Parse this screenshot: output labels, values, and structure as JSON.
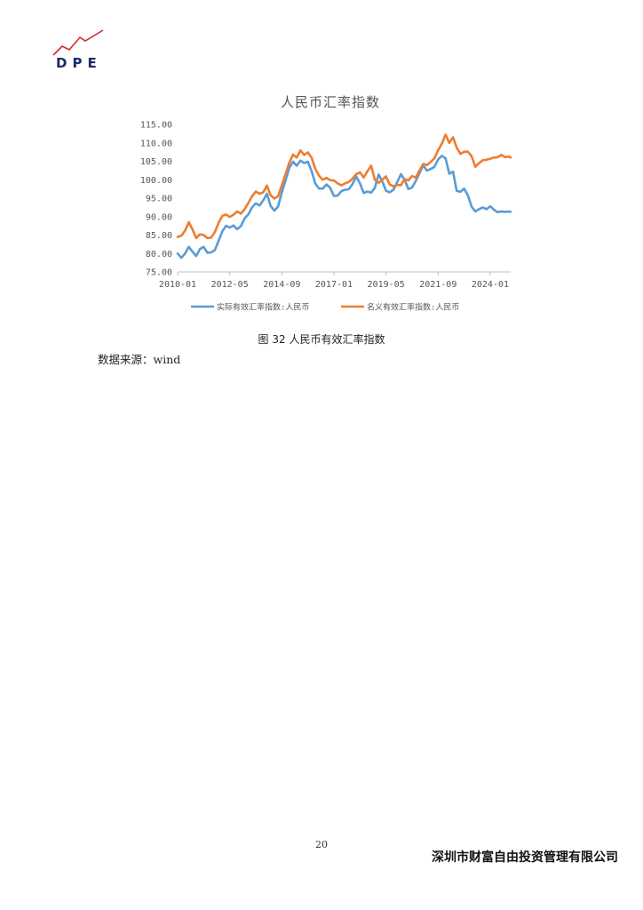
{
  "header": {
    "logo_text": "DPE",
    "logo_accent_color": "#d6292b",
    "logo_text_color": "#1b2a6b"
  },
  "chart_data": {
    "type": "line",
    "title": "人民币汇率指数",
    "xlabel": "",
    "ylabel": "",
    "ylim": [
      75,
      115
    ],
    "y_ticks": [
      "75.00",
      "80.00",
      "85.00",
      "90.00",
      "95.00",
      "100.00",
      "105.00",
      "110.00",
      "115.00"
    ],
    "x_ticks": [
      "2010-01",
      "2012-05",
      "2014-09",
      "2017-01",
      "2019-05",
      "2021-09",
      "2024-01"
    ],
    "x_range": [
      "2010-01",
      "2024-12"
    ],
    "grid": false,
    "legend_position": "bottom",
    "series": [
      {
        "name": "实际有效汇率指数:人民币",
        "color": "#5b9bd5",
        "points": [
          [
            "2010-01",
            80.0
          ],
          [
            "2010-03",
            78.8
          ],
          [
            "2010-05",
            80.0
          ],
          [
            "2010-07",
            81.8
          ],
          [
            "2010-09",
            80.5
          ],
          [
            "2010-11",
            79.3
          ],
          [
            "2011-01",
            81.2
          ],
          [
            "2011-03",
            81.8
          ],
          [
            "2011-05",
            80.2
          ],
          [
            "2011-07",
            80.3
          ],
          [
            "2011-09",
            80.9
          ],
          [
            "2011-11",
            83.4
          ],
          [
            "2012-01",
            86.0
          ],
          [
            "2012-03",
            87.5
          ],
          [
            "2012-05",
            87.0
          ],
          [
            "2012-07",
            87.6
          ],
          [
            "2012-09",
            86.6
          ],
          [
            "2012-11",
            87.4
          ],
          [
            "2013-01",
            89.5
          ],
          [
            "2013-03",
            90.6
          ],
          [
            "2013-05",
            92.5
          ],
          [
            "2013-07",
            93.6
          ],
          [
            "2013-09",
            93.0
          ],
          [
            "2013-11",
            94.4
          ],
          [
            "2014-01",
            96.2
          ],
          [
            "2014-03",
            92.9
          ],
          [
            "2014-05",
            91.6
          ],
          [
            "2014-07",
            92.7
          ],
          [
            "2014-09",
            96.5
          ],
          [
            "2014-11",
            99.8
          ],
          [
            "2015-01",
            103.2
          ],
          [
            "2015-03",
            104.9
          ],
          [
            "2015-05",
            103.8
          ],
          [
            "2015-07",
            105.2
          ],
          [
            "2015-09",
            104.5
          ],
          [
            "2015-11",
            104.9
          ],
          [
            "2016-01",
            102.4
          ],
          [
            "2016-03",
            99.0
          ],
          [
            "2016-05",
            97.6
          ],
          [
            "2016-07",
            97.6
          ],
          [
            "2016-09",
            98.7
          ],
          [
            "2016-11",
            97.8
          ],
          [
            "2017-01",
            95.6
          ],
          [
            "2017-03",
            95.7
          ],
          [
            "2017-05",
            96.9
          ],
          [
            "2017-07",
            97.3
          ],
          [
            "2017-09",
            97.4
          ],
          [
            "2017-11",
            98.8
          ],
          [
            "2018-01",
            100.9
          ],
          [
            "2018-03",
            99.0
          ],
          [
            "2018-05",
            96.4
          ],
          [
            "2018-07",
            96.8
          ],
          [
            "2018-09",
            96.5
          ],
          [
            "2018-11",
            97.8
          ],
          [
            "2019-01",
            101.4
          ],
          [
            "2019-03",
            99.6
          ],
          [
            "2019-05",
            97.0
          ],
          [
            "2019-07",
            96.6
          ],
          [
            "2019-09",
            97.3
          ],
          [
            "2019-11",
            99.3
          ],
          [
            "2020-01",
            101.5
          ],
          [
            "2020-03",
            100.0
          ],
          [
            "2020-05",
            97.5
          ],
          [
            "2020-07",
            97.9
          ],
          [
            "2020-09",
            99.7
          ],
          [
            "2020-11",
            101.8
          ],
          [
            "2021-01",
            103.9
          ],
          [
            "2021-03",
            102.5
          ],
          [
            "2021-05",
            102.9
          ],
          [
            "2021-07",
            103.5
          ],
          [
            "2021-09",
            105.5
          ],
          [
            "2021-11",
            106.5
          ],
          [
            "2022-01",
            105.8
          ],
          [
            "2022-03",
            101.6
          ],
          [
            "2022-05",
            102.2
          ],
          [
            "2022-07",
            97.0
          ],
          [
            "2022-09",
            96.7
          ],
          [
            "2022-11",
            97.6
          ],
          [
            "2023-01",
            95.8
          ],
          [
            "2023-03",
            92.7
          ],
          [
            "2023-05",
            91.4
          ],
          [
            "2023-07",
            92.0
          ],
          [
            "2023-09",
            92.5
          ],
          [
            "2023-11",
            92.0
          ],
          [
            "2024-01",
            92.8
          ],
          [
            "2024-03",
            91.9
          ],
          [
            "2024-05",
            91.2
          ],
          [
            "2024-07",
            91.4
          ],
          [
            "2024-09",
            91.3
          ],
          [
            "2024-11",
            91.4
          ],
          [
            "2024-12",
            91.3
          ]
        ]
      },
      {
        "name": "名义有效汇率指数:人民币",
        "color": "#ed7d31",
        "points": [
          [
            "2010-01",
            84.5
          ],
          [
            "2010-03",
            84.8
          ],
          [
            "2010-05",
            86.2
          ],
          [
            "2010-07",
            88.5
          ],
          [
            "2010-09",
            86.5
          ],
          [
            "2010-11",
            84.2
          ],
          [
            "2011-01",
            85.2
          ],
          [
            "2011-03",
            85.0
          ],
          [
            "2011-05",
            84.2
          ],
          [
            "2011-07",
            84.3
          ],
          [
            "2011-09",
            85.8
          ],
          [
            "2011-11",
            88.3
          ],
          [
            "2012-01",
            90.2
          ],
          [
            "2012-03",
            90.6
          ],
          [
            "2012-05",
            89.9
          ],
          [
            "2012-07",
            90.5
          ],
          [
            "2012-09",
            91.4
          ],
          [
            "2012-11",
            90.8
          ],
          [
            "2013-01",
            92.0
          ],
          [
            "2013-03",
            93.7
          ],
          [
            "2013-05",
            95.5
          ],
          [
            "2013-07",
            96.8
          ],
          [
            "2013-09",
            96.2
          ],
          [
            "2013-11",
            96.6
          ],
          [
            "2014-01",
            98.4
          ],
          [
            "2014-03",
            95.8
          ],
          [
            "2014-05",
            94.9
          ],
          [
            "2014-07",
            95.5
          ],
          [
            "2014-09",
            98.5
          ],
          [
            "2014-11",
            101.5
          ],
          [
            "2015-01",
            104.6
          ],
          [
            "2015-03",
            106.8
          ],
          [
            "2015-05",
            106.0
          ],
          [
            "2015-07",
            108.0
          ],
          [
            "2015-09",
            106.7
          ],
          [
            "2015-11",
            107.4
          ],
          [
            "2016-01",
            106.0
          ],
          [
            "2016-03",
            103.0
          ],
          [
            "2016-05",
            101.1
          ],
          [
            "2016-07",
            100.0
          ],
          [
            "2016-09",
            100.5
          ],
          [
            "2016-11",
            99.9
          ],
          [
            "2017-01",
            99.8
          ],
          [
            "2017-03",
            99.0
          ],
          [
            "2017-05",
            98.5
          ],
          [
            "2017-07",
            99.0
          ],
          [
            "2017-09",
            99.4
          ],
          [
            "2017-11",
            100.3
          ],
          [
            "2018-01",
            101.5
          ],
          [
            "2018-03",
            102.0
          ],
          [
            "2018-05",
            100.6
          ],
          [
            "2018-07",
            102.3
          ],
          [
            "2018-09",
            103.8
          ],
          [
            "2018-11",
            100.0
          ],
          [
            "2019-01",
            99.2
          ],
          [
            "2019-03",
            100.0
          ],
          [
            "2019-05",
            100.9
          ],
          [
            "2019-07",
            98.7
          ],
          [
            "2019-09",
            98.2
          ],
          [
            "2019-11",
            98.6
          ],
          [
            "2020-01",
            98.5
          ],
          [
            "2020-03",
            100.2
          ],
          [
            "2020-05",
            99.8
          ],
          [
            "2020-07",
            101.0
          ],
          [
            "2020-09",
            100.6
          ],
          [
            "2020-11",
            102.5
          ],
          [
            "2021-01",
            104.3
          ],
          [
            "2021-03",
            104.0
          ],
          [
            "2021-05",
            104.8
          ],
          [
            "2021-07",
            105.8
          ],
          [
            "2021-09",
            108.0
          ],
          [
            "2021-11",
            109.8
          ],
          [
            "2022-01",
            112.2
          ],
          [
            "2022-03",
            110.0
          ],
          [
            "2022-05",
            111.5
          ],
          [
            "2022-07",
            108.7
          ],
          [
            "2022-09",
            107.0
          ],
          [
            "2022-11",
            107.6
          ],
          [
            "2023-01",
            107.6
          ],
          [
            "2023-03",
            106.4
          ],
          [
            "2023-05",
            103.5
          ],
          [
            "2023-07",
            104.5
          ],
          [
            "2023-09",
            105.3
          ],
          [
            "2023-11",
            105.4
          ],
          [
            "2024-01",
            105.7
          ],
          [
            "2024-03",
            106.0
          ],
          [
            "2024-05",
            106.1
          ],
          [
            "2024-07",
            106.7
          ],
          [
            "2024-09",
            106.1
          ],
          [
            "2024-11",
            106.3
          ],
          [
            "2024-12",
            106.0
          ]
        ]
      }
    ]
  },
  "figure": {
    "caption": "图 32 人民币有效汇率指数",
    "source": "数据来源：wind"
  },
  "footer": {
    "page_number": "20",
    "company": "深圳市财富自由投资管理有限公司"
  }
}
